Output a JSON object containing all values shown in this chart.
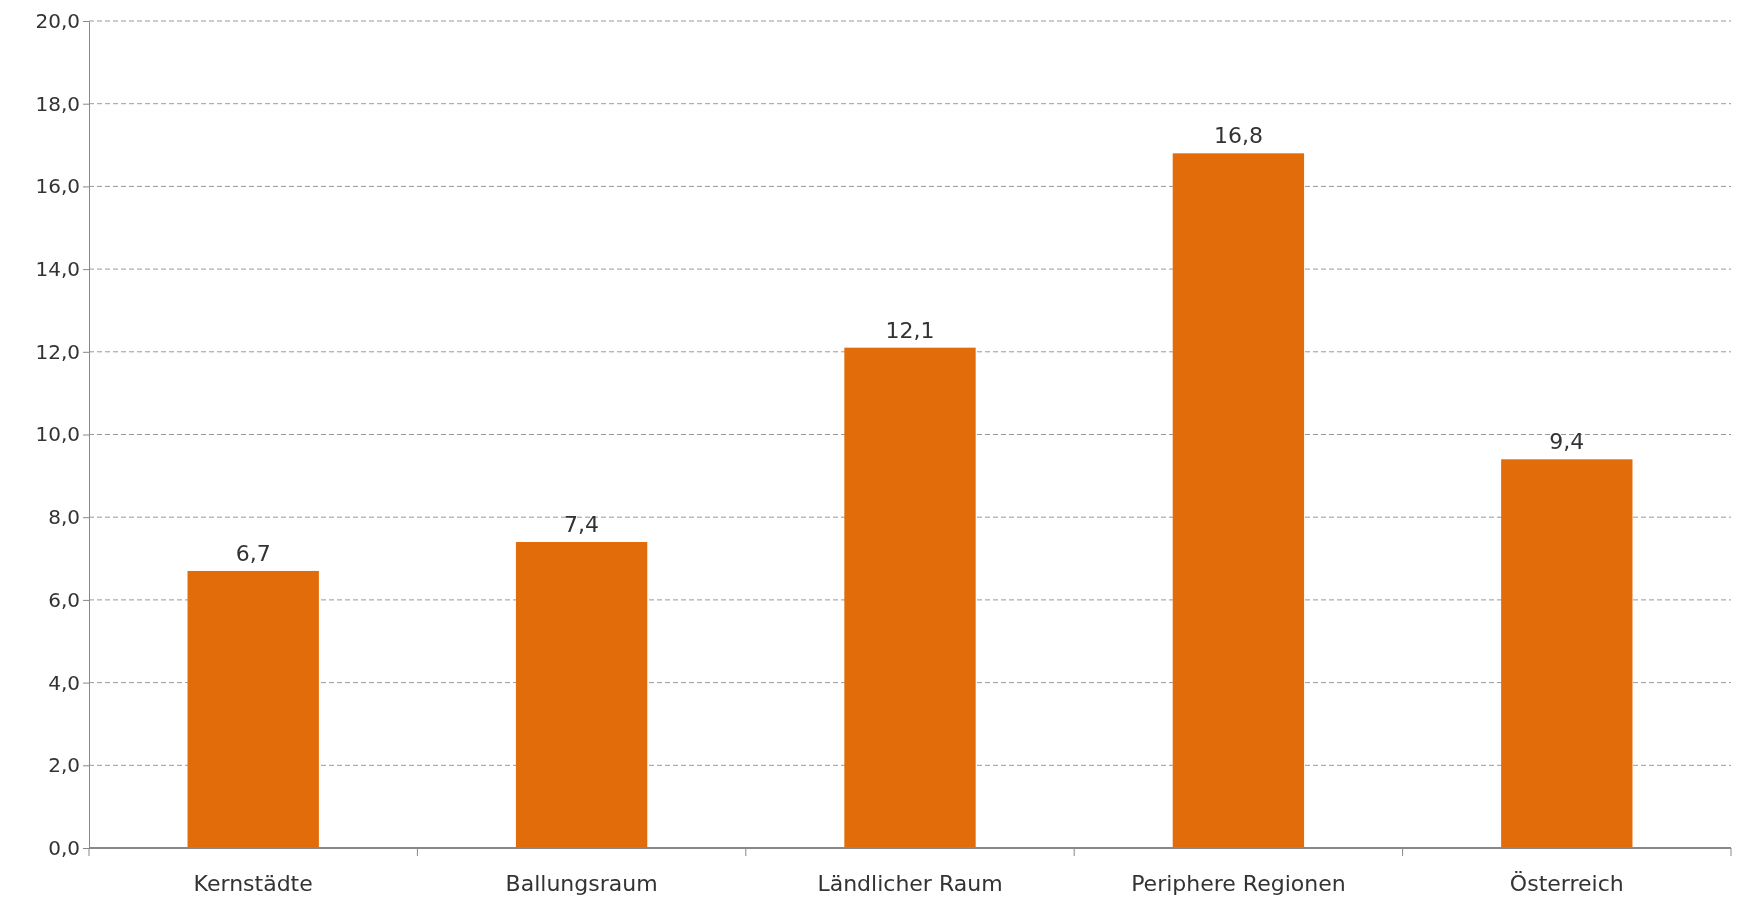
{
  "chart_data": {
    "type": "bar",
    "categories": [
      "Kernstädte",
      "Ballungsraum",
      "Ländlicher Raum",
      "Periphere Regionen",
      "Österreich"
    ],
    "values": [
      6.7,
      7.4,
      12.1,
      16.8,
      9.4
    ],
    "value_labels": [
      "6,7",
      "7,4",
      "12,1",
      "16,8",
      "9,4"
    ],
    "color": "#e36c0a",
    "ylim": [
      0,
      20
    ],
    "yticks": [
      {
        "value": 0,
        "label": "0,0"
      },
      {
        "value": 2,
        "label": "2,0"
      },
      {
        "value": 4,
        "label": "4,0"
      },
      {
        "value": 6,
        "label": "6,0"
      },
      {
        "value": 8,
        "label": "8,0"
      },
      {
        "value": 10,
        "label": "10,0"
      },
      {
        "value": 12,
        "label": "12,0"
      },
      {
        "value": 14,
        "label": "14,0"
      },
      {
        "value": 16,
        "label": "16,0"
      },
      {
        "value": 18,
        "label": "18,0"
      },
      {
        "value": 20,
        "label": "20,0"
      }
    ],
    "grid": "y"
  }
}
